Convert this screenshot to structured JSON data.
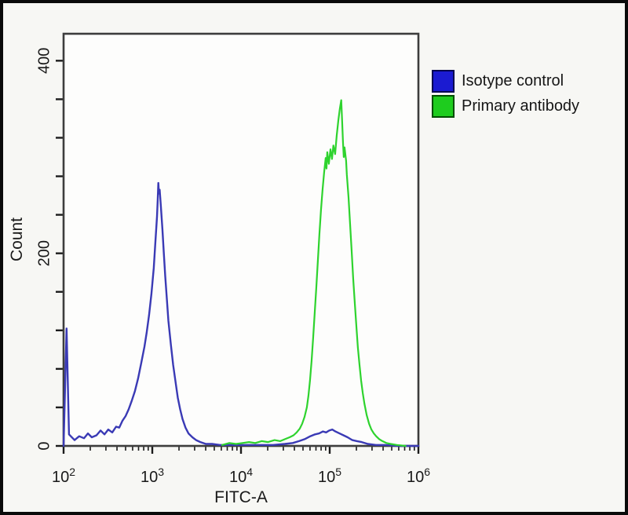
{
  "figure": {
    "background": "#f7f7f4",
    "outer_border_color": "#0a0a0a",
    "plot_background": "#fdfdfc",
    "frame_color": "#3d3d3d",
    "tick_color": "#1c1c1c",
    "text_color": "#191919"
  },
  "legend": {
    "items": [
      {
        "label": "Isotype control",
        "swatch_color": "#1b1bd1",
        "swatch_border": "#000050"
      },
      {
        "label": "Primary antibody",
        "swatch_color": "#1ecc1e",
        "swatch_border": "#004d00"
      }
    ]
  },
  "chart_data": {
    "type": "line",
    "title": "",
    "xlabel": "FITC-A",
    "ylabel": "Count",
    "x_scale": "log",
    "xlim": [
      100,
      1000000
    ],
    "ylim": [
      0,
      428
    ],
    "grid": false,
    "legend_position": "right-outside",
    "x_ticks": [
      {
        "base": "10",
        "exp": "2",
        "value": 100
      },
      {
        "base": "10",
        "exp": "3",
        "value": 1000
      },
      {
        "base": "10",
        "exp": "4",
        "value": 10000
      },
      {
        "base": "10",
        "exp": "5",
        "value": 100000
      },
      {
        "base": "10",
        "exp": "6",
        "value": 1000000
      }
    ],
    "x_minor_ticks_per_decade": [
      2,
      3,
      4,
      5,
      6,
      7,
      8,
      9
    ],
    "y_ticks": {
      "minor_step": 40,
      "labeled": [
        {
          "value": 0,
          "label": "0"
        },
        {
          "value": 200,
          "label": "200"
        },
        {
          "value": 400,
          "label": "400"
        }
      ]
    },
    "series": [
      {
        "name": "Isotype control",
        "color": "#3a3ab5",
        "peak": {
          "x": 1170,
          "count": 273
        },
        "points": [
          [
            100,
            0
          ],
          [
            108,
            122
          ],
          [
            115,
            12
          ],
          [
            133,
            6
          ],
          [
            150,
            10
          ],
          [
            170,
            8
          ],
          [
            188,
            13
          ],
          [
            208,
            9
          ],
          [
            235,
            11
          ],
          [
            261,
            16
          ],
          [
            289,
            12
          ],
          [
            319,
            17
          ],
          [
            354,
            14
          ],
          [
            391,
            20
          ],
          [
            424,
            19
          ],
          [
            460,
            26
          ],
          [
            500,
            31
          ],
          [
            542,
            38
          ],
          [
            588,
            47
          ],
          [
            638,
            57
          ],
          [
            692,
            70
          ],
          [
            751,
            86
          ],
          [
            815,
            103
          ],
          [
            866,
            118
          ],
          [
            920,
            136
          ],
          [
            977,
            158
          ],
          [
            1040,
            185
          ],
          [
            1080,
            210
          ],
          [
            1130,
            238
          ],
          [
            1150,
            255
          ],
          [
            1170,
            273
          ],
          [
            1190,
            262
          ],
          [
            1210,
            266
          ],
          [
            1250,
            248
          ],
          [
            1300,
            225
          ],
          [
            1350,
            200
          ],
          [
            1400,
            176
          ],
          [
            1460,
            152
          ],
          [
            1520,
            130
          ],
          [
            1620,
            105
          ],
          [
            1720,
            84
          ],
          [
            1830,
            66
          ],
          [
            1940,
            50
          ],
          [
            2060,
            38
          ],
          [
            2190,
            28
          ],
          [
            2370,
            19
          ],
          [
            2560,
            13
          ],
          [
            2830,
            9
          ],
          [
            3120,
            6
          ],
          [
            3490,
            4
          ],
          [
            4020,
            2
          ],
          [
            4720,
            2
          ],
          [
            5780,
            1
          ],
          [
            7500,
            1
          ],
          [
            10200,
            1
          ],
          [
            15300,
            1
          ],
          [
            23000,
            1
          ],
          [
            31200,
            2
          ],
          [
            38300,
            3
          ],
          [
            45100,
            5
          ],
          [
            52200,
            7
          ],
          [
            60300,
            10
          ],
          [
            68300,
            12
          ],
          [
            76000,
            13
          ],
          [
            83900,
            15
          ],
          [
            91000,
            14
          ],
          [
            98800,
            16
          ],
          [
            107000,
            17
          ],
          [
            116000,
            15
          ],
          [
            129000,
            13
          ],
          [
            143000,
            11
          ],
          [
            159000,
            9
          ],
          [
            180000,
            6
          ],
          [
            203000,
            5
          ],
          [
            229000,
            4
          ],
          [
            269000,
            2
          ],
          [
            331000,
            1
          ],
          [
            421000,
            1
          ],
          [
            608000,
            0
          ],
          [
            1000000,
            0
          ]
        ]
      },
      {
        "name": "Primary antibody",
        "color": "#2ed32e",
        "peak": {
          "x": 135000,
          "count": 359
        },
        "points": [
          [
            6130,
            1
          ],
          [
            7400,
            3
          ],
          [
            8800,
            2
          ],
          [
            10400,
            3
          ],
          [
            12300,
            4
          ],
          [
            14500,
            3
          ],
          [
            17100,
            5
          ],
          [
            20200,
            4
          ],
          [
            23900,
            6
          ],
          [
            27700,
            5
          ],
          [
            31300,
            7
          ],
          [
            35300,
            9
          ],
          [
            39100,
            11
          ],
          [
            42400,
            14
          ],
          [
            46000,
            18
          ],
          [
            48900,
            23
          ],
          [
            52000,
            30
          ],
          [
            55300,
            40
          ],
          [
            57600,
            52
          ],
          [
            60000,
            68
          ],
          [
            62500,
            88
          ],
          [
            65100,
            112
          ],
          [
            67800,
            138
          ],
          [
            70600,
            164
          ],
          [
            73500,
            192
          ],
          [
            76600,
            220
          ],
          [
            79800,
            245
          ],
          [
            83100,
            266
          ],
          [
            86500,
            284
          ],
          [
            90100,
            299
          ],
          [
            92000,
            288
          ],
          [
            93900,
            305
          ],
          [
            97800,
            293
          ],
          [
            102000,
            308
          ],
          [
            106000,
            298
          ],
          [
            110000,
            312
          ],
          [
            115000,
            303
          ],
          [
            120000,
            322
          ],
          [
            125000,
            338
          ],
          [
            130000,
            350
          ],
          [
            135000,
            359
          ],
          [
            138000,
            338
          ],
          [
            141000,
            316
          ],
          [
            144000,
            300
          ],
          [
            147000,
            310
          ],
          [
            153000,
            296
          ],
          [
            156000,
            282
          ],
          [
            163000,
            258
          ],
          [
            170000,
            230
          ],
          [
            177000,
            202
          ],
          [
            184000,
            174
          ],
          [
            192000,
            148
          ],
          [
            200000,
            124
          ],
          [
            208000,
            102
          ],
          [
            217000,
            84
          ],
          [
            226000,
            68
          ],
          [
            236000,
            55
          ],
          [
            246000,
            44
          ],
          [
            261000,
            32
          ],
          [
            278000,
            23
          ],
          [
            295000,
            17
          ],
          [
            314000,
            13
          ],
          [
            334000,
            10
          ],
          [
            362000,
            7
          ],
          [
            393000,
            5
          ],
          [
            435000,
            3
          ],
          [
            488000,
            2
          ],
          [
            571000,
            1
          ],
          [
            716000,
            0
          ]
        ]
      }
    ]
  }
}
